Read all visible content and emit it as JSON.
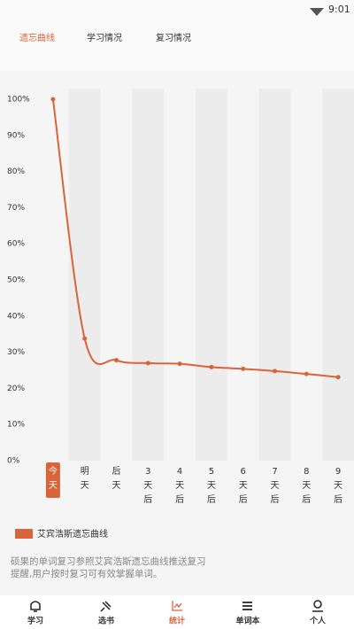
{
  "status": {
    "time": "9:01"
  },
  "tabs": [
    "遗忘曲线",
    "学习情况",
    "复习情况"
  ],
  "chart_data": {
    "type": "line",
    "categories": [
      "今天",
      "明天",
      "后天",
      "3天后",
      "4天后",
      "5天后",
      "6天后",
      "7天后",
      "8天后",
      "9天后"
    ],
    "series": [
      {
        "name": "艾宾浩斯遗忘曲线",
        "color": "#d9643a",
        "values": [
          100,
          33.8,
          27.8,
          27,
          26.8,
          25.9,
          25.4,
          24.8,
          24,
          23.1
        ]
      }
    ],
    "ylim": [
      0,
      100
    ],
    "yticks": [
      {
        "value": 0,
        "label": "0%"
      },
      {
        "value": 10,
        "label": "10%"
      },
      {
        "value": 20,
        "label": "20%"
      },
      {
        "value": 30,
        "label": "30%"
      },
      {
        "value": 40,
        "label": "40%"
      },
      {
        "value": 50,
        "label": "50%"
      },
      {
        "value": 60,
        "label": "60%"
      },
      {
        "value": 70,
        "label": "70%"
      },
      {
        "value": 80,
        "label": "80%"
      },
      {
        "value": 90,
        "label": "90%"
      },
      {
        "value": 100,
        "label": "100%"
      }
    ]
  },
  "description": "硕果的单词复习参照艾宾浩斯遗忘曲线推送复习提醒,用户按时复习可有效掌握单词。",
  "nav": [
    "学习",
    "选书",
    "统计",
    "单词本",
    "个人"
  ]
}
